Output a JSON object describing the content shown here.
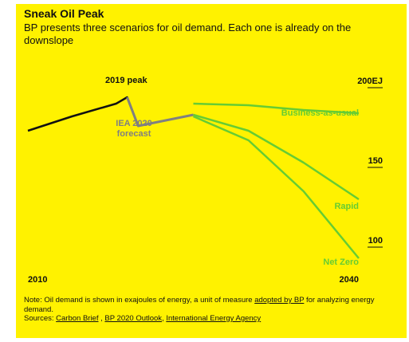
{
  "colors": {
    "background": "#fff200",
    "history": "#111111",
    "iea": "#808080",
    "bp": "#66cc33"
  },
  "chart_data": {
    "type": "line",
    "title": "Sneak Oil Peak",
    "subtitle": "BP presents three scenarios for oil demand. Each one is already on the downslope",
    "xlim": [
      2010,
      2040
    ],
    "ylim": [
      80,
      210
    ],
    "x_ticks": [
      "2010",
      "2040"
    ],
    "y_ticks": [
      "200EJ",
      "150",
      "100"
    ],
    "series": [
      {
        "name": "",
        "role": "history",
        "points": [
          [
            2010,
            173
          ],
          [
            2014,
            182
          ],
          [
            2018,
            190
          ],
          [
            2019,
            194
          ],
          [
            2020,
            176
          ]
        ]
      },
      {
        "name": "IEA 2020 forecast",
        "role": "iea",
        "points": [
          [
            2019,
            194
          ],
          [
            2020,
            176
          ],
          [
            2025,
            183
          ]
        ]
      },
      {
        "name": "Business-as-usual",
        "role": "bp",
        "points": [
          [
            2025,
            190
          ],
          [
            2030,
            189
          ],
          [
            2035,
            186
          ],
          [
            2040,
            184
          ]
        ]
      },
      {
        "name": "Rapid",
        "role": "bp",
        "points": [
          [
            2025,
            183
          ],
          [
            2030,
            173
          ],
          [
            2035,
            153
          ],
          [
            2040,
            130
          ]
        ]
      },
      {
        "name": "Net Zero",
        "role": "bp",
        "points": [
          [
            2025,
            182
          ],
          [
            2030,
            167
          ],
          [
            2035,
            135
          ],
          [
            2040,
            93
          ]
        ]
      }
    ],
    "annotations": {
      "peak": "2019 peak",
      "iea_line1": "IEA 2020",
      "iea_line2": "forecast"
    }
  },
  "note": {
    "text_before": "Note: Oil demand is shown in exajoules of energy, a unit of measure ",
    "link": "adopted by BP",
    "text_after": " for analyzing energy demand.",
    "sources_label": "Sources: ",
    "sources": [
      "Carbon Brief",
      "BP 2020 Outlook",
      "International Energy Agency"
    ]
  }
}
